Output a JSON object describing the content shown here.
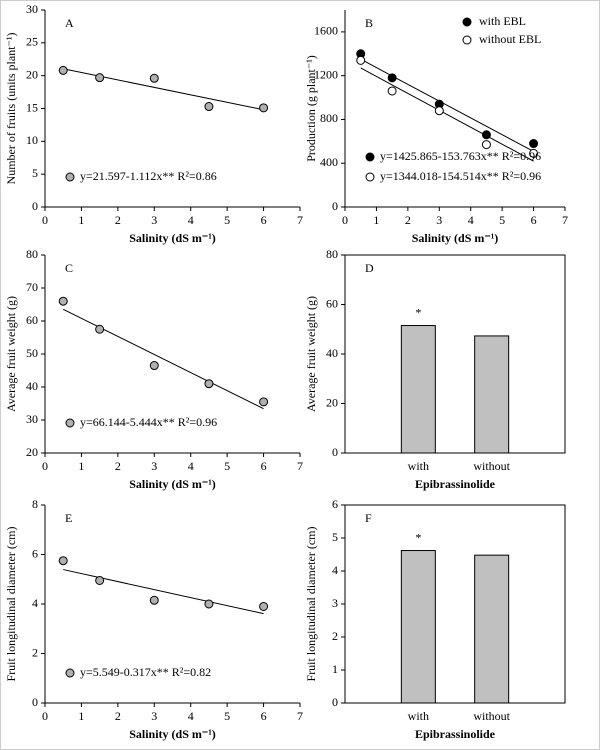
{
  "chart_data": [
    {
      "type": "scatter",
      "label": "A",
      "xlabel": "Salinity (dS m⁻¹)",
      "ylabel": "Number of fruits (units plant⁻¹)",
      "x": [
        0.5,
        1.5,
        3,
        4.5,
        6
      ],
      "values": [
        20.8,
        19.7,
        19.6,
        15.3,
        15.1
      ],
      "color": "#b0b0b0",
      "xlim": [
        0,
        7
      ],
      "xticks": [
        0,
        1,
        2,
        3,
        4,
        5,
        6,
        7
      ],
      "ylim": [
        0,
        30
      ],
      "yticks": [
        0,
        5,
        10,
        15,
        20,
        25,
        30
      ],
      "annotations": [
        "y=21.597-1.112x** R²=0.86"
      ]
    },
    {
      "type": "scatter",
      "label": "B",
      "xlabel": "Salinity (dS m⁻¹)",
      "ylabel": "Production (g plant⁻¹)",
      "x": [
        0.5,
        1.5,
        3,
        4.5,
        6
      ],
      "series": [
        {
          "name": "with EBL",
          "color": "#000000",
          "values": [
            1400,
            1180,
            940,
            660,
            580
          ]
        },
        {
          "name": "without EBL",
          "color": "#ffffff",
          "values": [
            1340,
            1060,
            880,
            570,
            490
          ]
        }
      ],
      "xlim": [
        0,
        7
      ],
      "xticks": [
        0,
        1,
        2,
        3,
        4,
        5,
        6,
        7
      ],
      "ylim": [
        0,
        1800
      ],
      "yticks": [
        0,
        400,
        800,
        1200,
        1600
      ],
      "legend": "top-right",
      "annotations": [
        "y=1425.865-153.763x** R²=0.96",
        "y=1344.018-154.514x** R²=0.96"
      ]
    },
    {
      "type": "scatter",
      "label": "C",
      "xlabel": "Salinity (dS m⁻¹)",
      "ylabel": "Average fruit weight (g)",
      "x": [
        0.5,
        1.5,
        3,
        4.5,
        6
      ],
      "values": [
        66,
        57.5,
        46.5,
        41,
        35.5
      ],
      "color": "#b0b0b0",
      "xlim": [
        0,
        7
      ],
      "xticks": [
        0,
        1,
        2,
        3,
        4,
        5,
        6,
        7
      ],
      "ylim": [
        20,
        80
      ],
      "yticks": [
        20,
        30,
        40,
        50,
        60,
        70,
        80
      ],
      "annotations": [
        "y=66.144-5.444x** R²=0.96"
      ]
    },
    {
      "type": "bar",
      "label": "D",
      "xlabel": "Epibrassinolide",
      "ylabel": "Average fruit weight (g)",
      "categories": [
        "with",
        "without"
      ],
      "values": [
        51.5,
        47.3
      ],
      "color": "#c0c0c0",
      "ylim": [
        0,
        80
      ],
      "yticks": [
        0,
        20,
        40,
        60,
        80
      ],
      "annotations": [
        "*"
      ]
    },
    {
      "type": "scatter",
      "label": "E",
      "xlabel": "Salinity (dS m⁻¹)",
      "ylabel": "Fruit longitudinal diameter (cm)",
      "x": [
        0.5,
        1.5,
        3,
        4.5,
        6
      ],
      "values": [
        5.75,
        4.95,
        4.15,
        4.0,
        3.9
      ],
      "color": "#b0b0b0",
      "xlim": [
        0,
        7
      ],
      "xticks": [
        0,
        1,
        2,
        3,
        4,
        5,
        6,
        7
      ],
      "ylim": [
        0,
        8
      ],
      "yticks": [
        0,
        2,
        4,
        6,
        8
      ],
      "annotations": [
        "y=5.549-0.317x** R²=0.82"
      ]
    },
    {
      "type": "bar",
      "label": "F",
      "xlabel": "Epibrassinolide",
      "ylabel": "Fruit longitudinal diameter (cm)",
      "categories": [
        "with",
        "without"
      ],
      "values": [
        4.62,
        4.48
      ],
      "color": "#c0c0c0",
      "ylim": [
        0,
        6
      ],
      "yticks": [
        0,
        1,
        2,
        3,
        4,
        5,
        6
      ],
      "annotations": [
        "*"
      ]
    }
  ]
}
